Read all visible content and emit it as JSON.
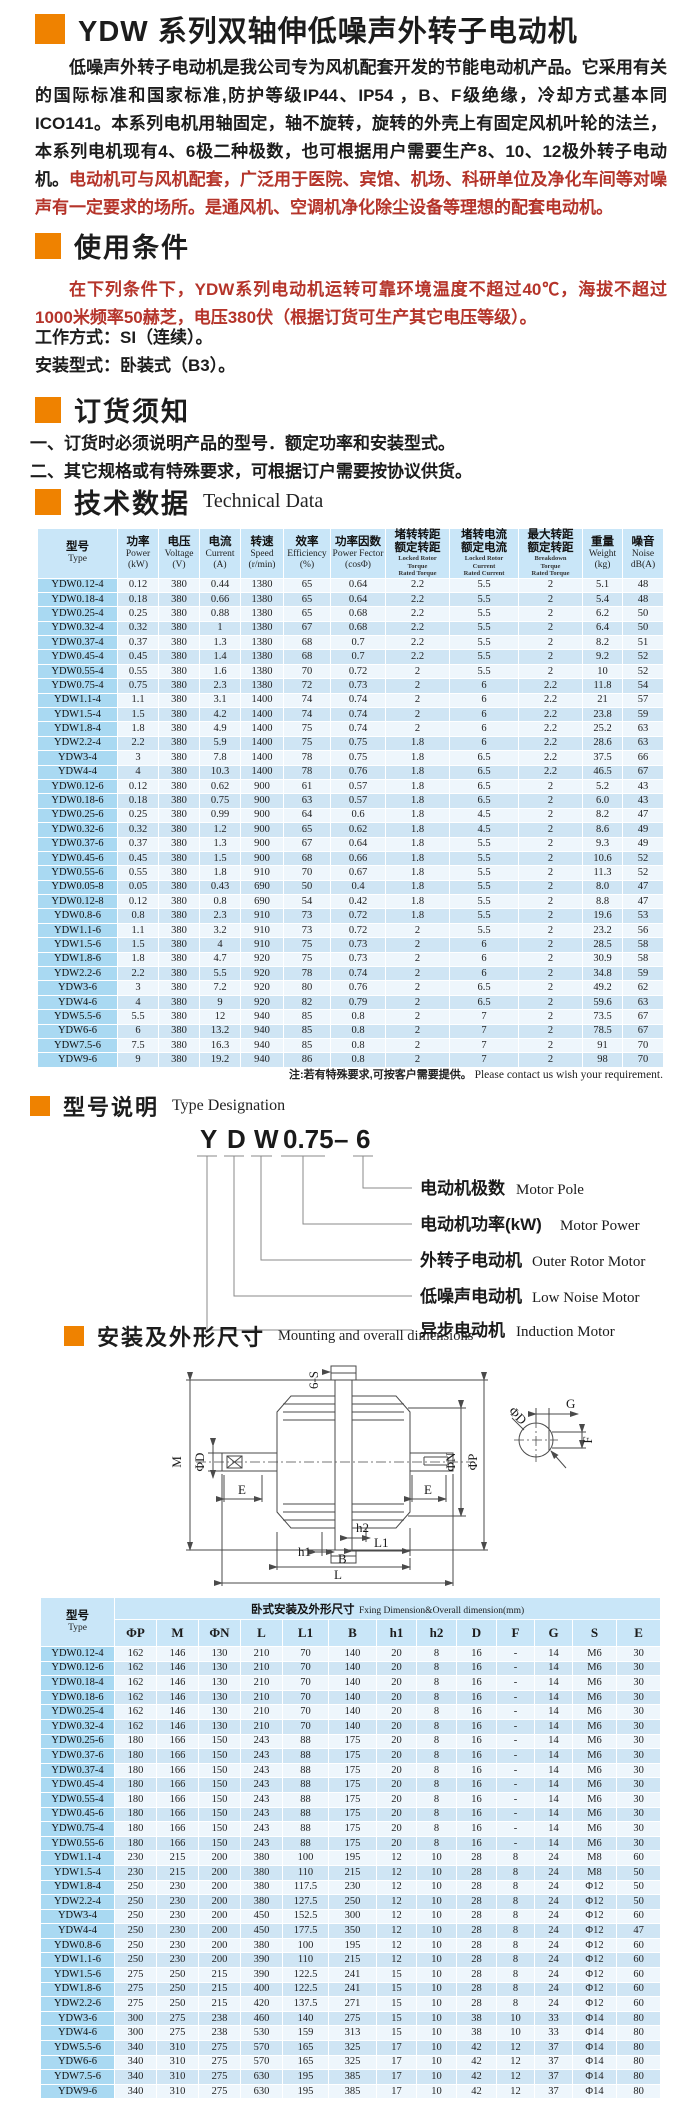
{
  "colors": {
    "accent_orange": "#ef8200",
    "text_red": "#b5342a",
    "table_header_bg": "#c9e6f8",
    "type_col_bg": "#a9d9f2",
    "row_light": "#eef6fc",
    "row_blue": "#cfe5f4"
  },
  "title": "YDW 系列双轴伸低噪声外转子电动机",
  "intro": {
    "p1": "低噪声外转子电动机是我公司专为风机配套开发的节能电动机产品。它采用有关的国际标准和国家标准,防护等级IP44、IP54 ，B、F级绝缘，冷却方式基本同ICO141。本系列电机用轴固定，轴不旋转，旋转的外壳上有固定风机叶轮的法兰，本系列电机现有4、6极二种极数，也可根据用户需要生产8、10、12极外转子电动机。",
    "p2": "电动机可与风机配套，广泛用于医院、宾馆、机场、科研单位及净化车间等对噪声有一定要求的场所。是通风机、空调机净化除尘设备等理想的配套电动机。"
  },
  "usage": {
    "heading": "使用条件",
    "p1": "在下列条件下，YDW系列电动机运转可靠环境温度不超过40℃，海拔不超过1000米频率50赫芝，电压380伏（根据订货可生产其它电压等级）。",
    "line1": "工作方式：SI（连续）。",
    "line2": "安装型式：卧装式（B3）。"
  },
  "ordering": {
    "heading": "订货须知",
    "item1": "一、订货时必须说明产品的型号．额定功率和安装型式。",
    "item2": "二、其它规格或有特殊要求，可根据订户需要按协议供货。"
  },
  "tech": {
    "heading": "技术数据",
    "heading_en": "Technical Data",
    "note_zh": "注:若有特殊要求,可按客户需要提供。",
    "note_en": "Please contact us wish your requirement.",
    "headers": [
      {
        "zh": "型号",
        "en": "Type"
      },
      {
        "zh": "功率",
        "en": "Power",
        "unit": "(kW)"
      },
      {
        "zh": "电压",
        "en": "Voltage",
        "unit": "(V)"
      },
      {
        "zh": "电流",
        "en": "Current",
        "unit": "(A)"
      },
      {
        "zh": "转速",
        "en": "Speed",
        "unit": "(r/min)"
      },
      {
        "zh": "效率",
        "en": "Efficiency",
        "unit": "(%)"
      },
      {
        "zh": "功率因数",
        "en": "Power Fector",
        "unit": "(cosΦ)"
      },
      {
        "zh": "堵转转距",
        "zh2": "额定转距",
        "small": [
          "Locked Rotor",
          "Torque",
          "Rated Torque"
        ]
      },
      {
        "zh": "堵转电流",
        "zh2": "额定电流",
        "small": [
          "Locked Rotor",
          "Current",
          "Rated Current"
        ]
      },
      {
        "zh": "最大转距",
        "zh2": "额定转距",
        "small": [
          "Breakdown",
          "Torque",
          "Rated Torque"
        ]
      },
      {
        "zh": "重量",
        "en": "Weight",
        "unit": "(kg)"
      },
      {
        "zh": "噪音",
        "en": "Noise",
        "unit": "dB(A)"
      }
    ],
    "rows": [
      [
        "YDW0.12-4",
        "0.12",
        "380",
        "0.44",
        "1380",
        "65",
        "0.64",
        "2.2",
        "5.5",
        "2",
        "5.1",
        "48"
      ],
      [
        "YDW0.18-4",
        "0.18",
        "380",
        "0.66",
        "1380",
        "65",
        "0.64",
        "2.2",
        "5.5",
        "2",
        "5.4",
        "48"
      ],
      [
        "YDW0.25-4",
        "0.25",
        "380",
        "0.88",
        "1380",
        "65",
        "0.68",
        "2.2",
        "5.5",
        "2",
        "6.2",
        "50"
      ],
      [
        "YDW0.32-4",
        "0.32",
        "380",
        "1",
        "1380",
        "67",
        "0.68",
        "2.2",
        "5.5",
        "2",
        "6.4",
        "50"
      ],
      [
        "YDW0.37-4",
        "0.37",
        "380",
        "1.3",
        "1380",
        "68",
        "0.7",
        "2.2",
        "5.5",
        "2",
        "8.2",
        "51"
      ],
      [
        "YDW0.45-4",
        "0.45",
        "380",
        "1.4",
        "1380",
        "68",
        "0.7",
        "2.2",
        "5.5",
        "2",
        "9.2",
        "52"
      ],
      [
        "YDW0.55-4",
        "0.55",
        "380",
        "1.6",
        "1380",
        "70",
        "0.72",
        "2",
        "5.5",
        "2",
        "10",
        "52"
      ],
      [
        "YDW0.75-4",
        "0.75",
        "380",
        "2.3",
        "1380",
        "72",
        "0.73",
        "2",
        "6",
        "2.2",
        "11.8",
        "54"
      ],
      [
        "YDW1.1-4",
        "1.1",
        "380",
        "3.1",
        "1400",
        "74",
        "0.74",
        "2",
        "6",
        "2.2",
        "21",
        "57"
      ],
      [
        "YDW1.5-4",
        "1.5",
        "380",
        "4.2",
        "1400",
        "74",
        "0.74",
        "2",
        "6",
        "2.2",
        "23.8",
        "59"
      ],
      [
        "YDW1.8-4",
        "1.8",
        "380",
        "4.9",
        "1400",
        "75",
        "0.74",
        "2",
        "6",
        "2.2",
        "25.2",
        "63"
      ],
      [
        "YDW2.2-4",
        "2.2",
        "380",
        "5.9",
        "1400",
        "75",
        "0.75",
        "1.8",
        "6",
        "2.2",
        "28.6",
        "63"
      ],
      [
        "YDW3-4",
        "3",
        "380",
        "7.8",
        "1400",
        "78",
        "0.75",
        "1.8",
        "6.5",
        "2.2",
        "37.5",
        "66"
      ],
      [
        "YDW4-4",
        "4",
        "380",
        "10.3",
        "1400",
        "78",
        "0.76",
        "1.8",
        "6.5",
        "2.2",
        "46.5",
        "67"
      ],
      [
        "YDW0.12-6",
        "0.12",
        "380",
        "0.62",
        "900",
        "61",
        "0.57",
        "1.8",
        "6.5",
        "2",
        "5.2",
        "43"
      ],
      [
        "YDW0.18-6",
        "0.18",
        "380",
        "0.75",
        "900",
        "63",
        "0.57",
        "1.8",
        "6.5",
        "2",
        "6.0",
        "43"
      ],
      [
        "YDW0.25-6",
        "0.25",
        "380",
        "0.99",
        "900",
        "64",
        "0.6",
        "1.8",
        "4.5",
        "2",
        "8.2",
        "47"
      ],
      [
        "YDW0.32-6",
        "0.32",
        "380",
        "1.2",
        "900",
        "65",
        "0.62",
        "1.8",
        "4.5",
        "2",
        "8.6",
        "49"
      ],
      [
        "YDW0.37-6",
        "0.37",
        "380",
        "1.3",
        "900",
        "67",
        "0.64",
        "1.8",
        "5.5",
        "2",
        "9.3",
        "49"
      ],
      [
        "YDW0.45-6",
        "0.45",
        "380",
        "1.5",
        "900",
        "68",
        "0.66",
        "1.8",
        "5.5",
        "2",
        "10.6",
        "52"
      ],
      [
        "YDW0.55-6",
        "0.55",
        "380",
        "1.8",
        "910",
        "70",
        "0.67",
        "1.8",
        "5.5",
        "2",
        "11.3",
        "52"
      ],
      [
        "YDW0.05-8",
        "0.05",
        "380",
        "0.43",
        "690",
        "50",
        "0.4",
        "1.8",
        "5.5",
        "2",
        "8.0",
        "47"
      ],
      [
        "YDW0.12-8",
        "0.12",
        "380",
        "0.8",
        "690",
        "54",
        "0.42",
        "1.8",
        "5.5",
        "2",
        "8.8",
        "47"
      ],
      [
        "YDW0.8-6",
        "0.8",
        "380",
        "2.3",
        "910",
        "73",
        "0.72",
        "1.8",
        "5.5",
        "2",
        "19.6",
        "53"
      ],
      [
        "YDW1.1-6",
        "1.1",
        "380",
        "3.2",
        "910",
        "73",
        "0.72",
        "2",
        "5.5",
        "2",
        "23.2",
        "56"
      ],
      [
        "YDW1.5-6",
        "1.5",
        "380",
        "4",
        "910",
        "75",
        "0.73",
        "2",
        "6",
        "2",
        "28.5",
        "58"
      ],
      [
        "YDW1.8-6",
        "1.8",
        "380",
        "4.7",
        "920",
        "75",
        "0.73",
        "2",
        "6",
        "2",
        "30.9",
        "58"
      ],
      [
        "YDW2.2-6",
        "2.2",
        "380",
        "5.5",
        "920",
        "78",
        "0.74",
        "2",
        "6",
        "2",
        "34.8",
        "59"
      ],
      [
        "YDW3-6",
        "3",
        "380",
        "7.2",
        "920",
        "80",
        "0.76",
        "2",
        "6.5",
        "2",
        "49.2",
        "62"
      ],
      [
        "YDW4-6",
        "4",
        "380",
        "9",
        "920",
        "82",
        "0.79",
        "2",
        "6.5",
        "2",
        "59.6",
        "63"
      ],
      [
        "YDW5.5-6",
        "5.5",
        "380",
        "12",
        "940",
        "85",
        "0.8",
        "2",
        "7",
        "2",
        "73.5",
        "67"
      ],
      [
        "YDW6-6",
        "6",
        "380",
        "13.2",
        "940",
        "85",
        "0.8",
        "2",
        "7",
        "2",
        "78.5",
        "67"
      ],
      [
        "YDW7.5-6",
        "7.5",
        "380",
        "16.3",
        "940",
        "85",
        "0.8",
        "2",
        "7",
        "2",
        "91",
        "70"
      ],
      [
        "YDW9-6",
        "9",
        "380",
        "19.2",
        "940",
        "86",
        "0.8",
        "2",
        "7",
        "2",
        "98",
        "70"
      ]
    ]
  },
  "designation": {
    "heading": "型号说明",
    "heading_en": "Type Designation",
    "code": [
      "Y",
      "D",
      "W",
      "0.75",
      "–",
      "6"
    ],
    "labels": [
      {
        "zh": "电动机极数",
        "en": "Motor Pole"
      },
      {
        "zh": "电动机功率(kW)",
        "en": "Motor  Power"
      },
      {
        "zh": "外转子电动机",
        "en": "Outer Rotor Motor"
      },
      {
        "zh": "低噪声电动机",
        "en": "Low Noise Motor"
      },
      {
        "zh": "异步电动机",
        "en": "Induction Motor"
      }
    ]
  },
  "mounting": {
    "heading": "安装及外形尺寸",
    "heading_en": "Mounting and overall dimensions",
    "drawing_labels": {
      "six_s": "6-S",
      "m": "M",
      "phi_d": "ΦD",
      "e": "E",
      "phi_n": "ΦN",
      "phi_p": "ΦP",
      "h1": "h1",
      "h2": "h2",
      "l1": "L1",
      "b": "B",
      "l": "L",
      "g": "G",
      "f": "F"
    }
  },
  "dim": {
    "type_zh": "型号",
    "type_en": "Type",
    "group_title_zh": "卧式安装及外形尺寸",
    "group_title_en": "Fxing Dimension&Overall dimension(mm)",
    "cols": [
      "ΦP",
      "M",
      "ΦN",
      "L",
      "L1",
      "B",
      "h1",
      "h2",
      "D",
      "F",
      "G",
      "S",
      "E"
    ],
    "rows": [
      [
        "YDW0.12-4",
        "162",
        "146",
        "130",
        "210",
        "70",
        "140",
        "20",
        "8",
        "16",
        "-",
        "14",
        "M6",
        "30"
      ],
      [
        "YDW0.12-6",
        "162",
        "146",
        "130",
        "210",
        "70",
        "140",
        "20",
        "8",
        "16",
        "-",
        "14",
        "M6",
        "30"
      ],
      [
        "YDW0.18-4",
        "162",
        "146",
        "130",
        "210",
        "70",
        "140",
        "20",
        "8",
        "16",
        "-",
        "14",
        "M6",
        "30"
      ],
      [
        "YDW0.18-6",
        "162",
        "146",
        "130",
        "210",
        "70",
        "140",
        "20",
        "8",
        "16",
        "-",
        "14",
        "M6",
        "30"
      ],
      [
        "YDW0.25-4",
        "162",
        "146",
        "130",
        "210",
        "70",
        "140",
        "20",
        "8",
        "16",
        "-",
        "14",
        "M6",
        "30"
      ],
      [
        "YDW0.32-4",
        "162",
        "146",
        "130",
        "210",
        "70",
        "140",
        "20",
        "8",
        "16",
        "-",
        "14",
        "M6",
        "30"
      ],
      [
        "YDW0.25-6",
        "180",
        "166",
        "150",
        "243",
        "88",
        "175",
        "20",
        "8",
        "16",
        "-",
        "14",
        "M6",
        "30"
      ],
      [
        "YDW0.37-6",
        "180",
        "166",
        "150",
        "243",
        "88",
        "175",
        "20",
        "8",
        "16",
        "-",
        "14",
        "M6",
        "30"
      ],
      [
        "YDW0.37-4",
        "180",
        "166",
        "150",
        "243",
        "88",
        "175",
        "20",
        "8",
        "16",
        "-",
        "14",
        "M6",
        "30"
      ],
      [
        "YDW0.45-4",
        "180",
        "166",
        "150",
        "243",
        "88",
        "175",
        "20",
        "8",
        "16",
        "-",
        "14",
        "M6",
        "30"
      ],
      [
        "YDW0.55-4",
        "180",
        "166",
        "150",
        "243",
        "88",
        "175",
        "20",
        "8",
        "16",
        "-",
        "14",
        "M6",
        "30"
      ],
      [
        "YDW0.45-6",
        "180",
        "166",
        "150",
        "243",
        "88",
        "175",
        "20",
        "8",
        "16",
        "-",
        "14",
        "M6",
        "30"
      ],
      [
        "YDW0.75-4",
        "180",
        "166",
        "150",
        "243",
        "88",
        "175",
        "20",
        "8",
        "16",
        "-",
        "14",
        "M6",
        "30"
      ],
      [
        "YDW0.55-6",
        "180",
        "166",
        "150",
        "243",
        "88",
        "175",
        "20",
        "8",
        "16",
        "-",
        "14",
        "M6",
        "30"
      ],
      [
        "YDW1.1-4",
        "230",
        "215",
        "200",
        "380",
        "100",
        "195",
        "12",
        "10",
        "28",
        "8",
        "24",
        "M8",
        "60"
      ],
      [
        "YDW1.5-4",
        "230",
        "215",
        "200",
        "380",
        "110",
        "215",
        "12",
        "10",
        "28",
        "8",
        "24",
        "M8",
        "50"
      ],
      [
        "YDW1.8-4",
        "250",
        "230",
        "200",
        "380",
        "117.5",
        "230",
        "12",
        "10",
        "28",
        "8",
        "24",
        "Φ12",
        "50"
      ],
      [
        "YDW2.2-4",
        "250",
        "230",
        "200",
        "380",
        "127.5",
        "250",
        "12",
        "10",
        "28",
        "8",
        "24",
        "Φ12",
        "50"
      ],
      [
        "YDW3-4",
        "250",
        "230",
        "200",
        "450",
        "152.5",
        "300",
        "12",
        "10",
        "28",
        "8",
        "24",
        "Φ12",
        "60"
      ],
      [
        "YDW4-4",
        "250",
        "230",
        "200",
        "450",
        "177.5",
        "350",
        "12",
        "10",
        "28",
        "8",
        "24",
        "Φ12",
        "47"
      ],
      [
        "YDW0.8-6",
        "250",
        "230",
        "200",
        "380",
        "100",
        "195",
        "12",
        "10",
        "28",
        "8",
        "24",
        "Φ12",
        "60"
      ],
      [
        "YDW1.1-6",
        "250",
        "230",
        "200",
        "390",
        "110",
        "215",
        "12",
        "10",
        "28",
        "8",
        "24",
        "Φ12",
        "60"
      ],
      [
        "YDW1.5-6",
        "275",
        "250",
        "215",
        "390",
        "122.5",
        "241",
        "15",
        "10",
        "28",
        "8",
        "24",
        "Φ12",
        "60"
      ],
      [
        "YDW1.8-6",
        "275",
        "250",
        "215",
        "400",
        "122.5",
        "241",
        "15",
        "10",
        "28",
        "8",
        "24",
        "Φ12",
        "60"
      ],
      [
        "YDW2.2-6",
        "275",
        "250",
        "215",
        "420",
        "137.5",
        "271",
        "15",
        "10",
        "28",
        "8",
        "24",
        "Φ12",
        "60"
      ],
      [
        "YDW3-6",
        "300",
        "275",
        "238",
        "460",
        "140",
        "275",
        "15",
        "10",
        "38",
        "10",
        "33",
        "Φ14",
        "80"
      ],
      [
        "YDW4-6",
        "300",
        "275",
        "238",
        "530",
        "159",
        "313",
        "15",
        "10",
        "38",
        "10",
        "33",
        "Φ14",
        "80"
      ],
      [
        "YDW5.5-6",
        "340",
        "310",
        "275",
        "570",
        "165",
        "325",
        "17",
        "10",
        "42",
        "12",
        "37",
        "Φ14",
        "80"
      ],
      [
        "YDW6-6",
        "340",
        "310",
        "275",
        "570",
        "165",
        "325",
        "17",
        "10",
        "42",
        "12",
        "37",
        "Φ14",
        "80"
      ],
      [
        "YDW7.5-6",
        "340",
        "310",
        "275",
        "630",
        "195",
        "385",
        "17",
        "10",
        "42",
        "12",
        "37",
        "Φ14",
        "80"
      ],
      [
        "YDW9-6",
        "340",
        "310",
        "275",
        "630",
        "195",
        "385",
        "17",
        "10",
        "42",
        "12",
        "37",
        "Φ14",
        "80"
      ]
    ]
  }
}
